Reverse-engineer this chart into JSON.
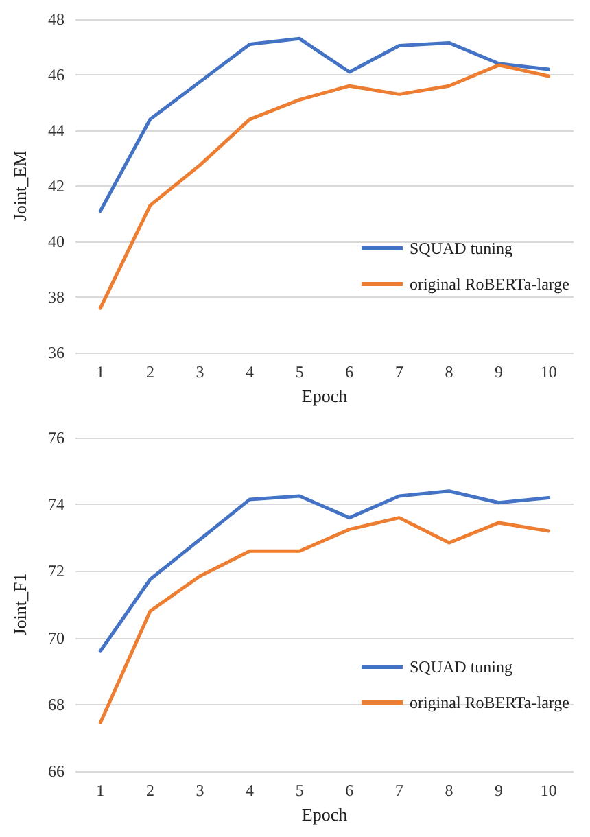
{
  "chart_data": [
    {
      "type": "line",
      "xlabel": "Epoch",
      "ylabel": "Joint_EM",
      "categories": [
        "1",
        "2",
        "3",
        "4",
        "5",
        "6",
        "7",
        "8",
        "9",
        "10"
      ],
      "series": [
        {
          "name": "SQUAD tuning",
          "color": "#4472c4",
          "values": [
            41.1,
            44.4,
            45.75,
            47.1,
            47.3,
            46.1,
            47.05,
            47.15,
            46.4,
            46.2
          ]
        },
        {
          "name": "original RoBERTa-large",
          "color": "#ed7d31",
          "values": [
            37.6,
            41.3,
            42.75,
            44.4,
            45.1,
            45.6,
            45.3,
            45.6,
            46.35,
            45.95
          ]
        }
      ],
      "ylim": [
        36,
        48
      ],
      "yticks": [
        36,
        38,
        40,
        42,
        44,
        46,
        48
      ],
      "grid": "y",
      "legend": "right",
      "marker": "none",
      "line_style": "solid"
    },
    {
      "type": "line",
      "xlabel": "Epoch",
      "ylabel": "Joint_F1",
      "categories": [
        "1",
        "2",
        "3",
        "4",
        "5",
        "6",
        "7",
        "8",
        "9",
        "10"
      ],
      "series": [
        {
          "name": "SQUAD tuning",
          "color": "#4472c4",
          "values": [
            69.6,
            71.75,
            72.95,
            74.15,
            74.25,
            73.6,
            74.25,
            74.4,
            74.05,
            74.2
          ]
        },
        {
          "name": "original RoBERTa-large",
          "color": "#ed7d31",
          "values": [
            67.45,
            70.8,
            71.85,
            72.6,
            72.6,
            73.25,
            73.6,
            72.85,
            73.45,
            73.2
          ]
        }
      ],
      "ylim": [
        66,
        76
      ],
      "yticks": [
        66,
        68,
        70,
        72,
        74,
        76
      ],
      "grid": "y",
      "legend": "right",
      "marker": "none",
      "line_style": "solid"
    }
  ]
}
